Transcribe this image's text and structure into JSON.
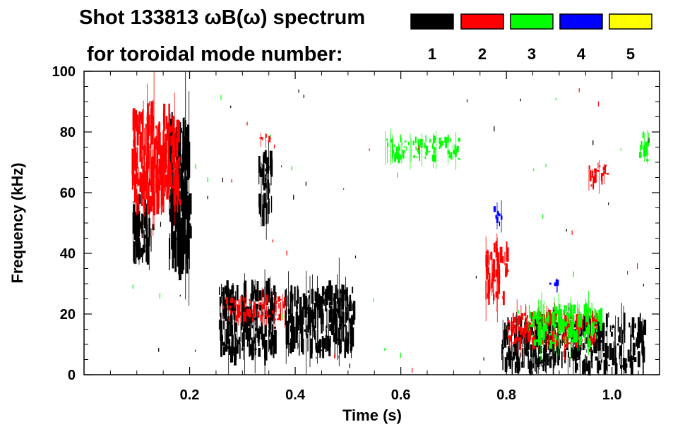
{
  "title_line1": "Shot 133813 ωB(ω) spectrum",
  "title_line2": "for toroidal mode number:",
  "legend": [
    {
      "label": "1",
      "color": "#000000"
    },
    {
      "label": "2",
      "color": "#ff0000"
    },
    {
      "label": "3",
      "color": "#00ff00"
    },
    {
      "label": "4",
      "color": "#0000ff"
    },
    {
      "label": "5",
      "color": "#ffff00"
    }
  ],
  "chart_data": {
    "type": "spectrogram",
    "title": "Shot 133813 ωB(ω) spectrum",
    "xlabel": "Time (s)",
    "ylabel": "Frequency (kHz)",
    "xlim": [
      0.0,
      1.09
    ],
    "ylim": [
      0,
      100
    ],
    "xticks": [
      0.2,
      0.4,
      0.6,
      0.8,
      1.0
    ],
    "xtick_labels": [
      "0.2",
      "0.4",
      "0.6",
      "0.8",
      "1.0"
    ],
    "yticks": [
      0,
      20,
      40,
      60,
      80,
      100
    ],
    "ytick_labels": [
      "0",
      "20",
      "40",
      "60",
      "80",
      "100"
    ],
    "series": [
      {
        "name": "n=1",
        "color": "#000000",
        "features": [
          {
            "t": [
              0.09,
              0.13
            ],
            "f": [
              38,
              58
            ]
          },
          {
            "t": [
              0.16,
              0.2
            ],
            "f": [
              38,
              82
            ]
          },
          {
            "t": [
              0.255,
              0.36
            ],
            "f": [
              6,
              28
            ]
          },
          {
            "t": [
              0.33,
              0.355
            ],
            "f": [
              52,
              72
            ]
          },
          {
            "t": [
              0.38,
              0.51
            ],
            "f": [
              8,
              28
            ]
          },
          {
            "t": [
              0.79,
              1.06
            ],
            "f": [
              2,
              18
            ]
          }
        ]
      },
      {
        "name": "n=2",
        "color": "#ff0000",
        "features": [
          {
            "t": [
              0.09,
              0.18
            ],
            "f": [
              55,
              85
            ]
          },
          {
            "t": [
              0.26,
              0.38
            ],
            "f": [
              18,
              25
            ]
          },
          {
            "t": [
              0.33,
              0.35
            ],
            "f": [
              76,
              79
            ]
          },
          {
            "t": [
              0.76,
              0.8
            ],
            "f": [
              25,
              42
            ]
          },
          {
            "t": [
              0.8,
              0.97
            ],
            "f": [
              10,
              20
            ]
          },
          {
            "t": [
              0.95,
              0.99
            ],
            "f": [
              62,
              69
            ]
          }
        ]
      },
      {
        "name": "n=3",
        "color": "#00ff00",
        "features": [
          {
            "t": [
              0.57,
              0.71
            ],
            "f": [
              71,
              78
            ]
          },
          {
            "t": [
              0.84,
              0.98
            ],
            "f": [
              10,
              22
            ]
          },
          {
            "t": [
              1.05,
              1.07
            ],
            "f": [
              70,
              80
            ]
          }
        ]
      },
      {
        "name": "n=4",
        "color": "#0000ff",
        "features": [
          {
            "t": [
              0.775,
              0.79
            ],
            "f": [
              50,
              56
            ]
          },
          {
            "t": [
              0.88,
              0.9
            ],
            "f": [
              28,
              31
            ]
          }
        ]
      },
      {
        "name": "n=5",
        "color": "#ffff00",
        "features": []
      }
    ]
  }
}
